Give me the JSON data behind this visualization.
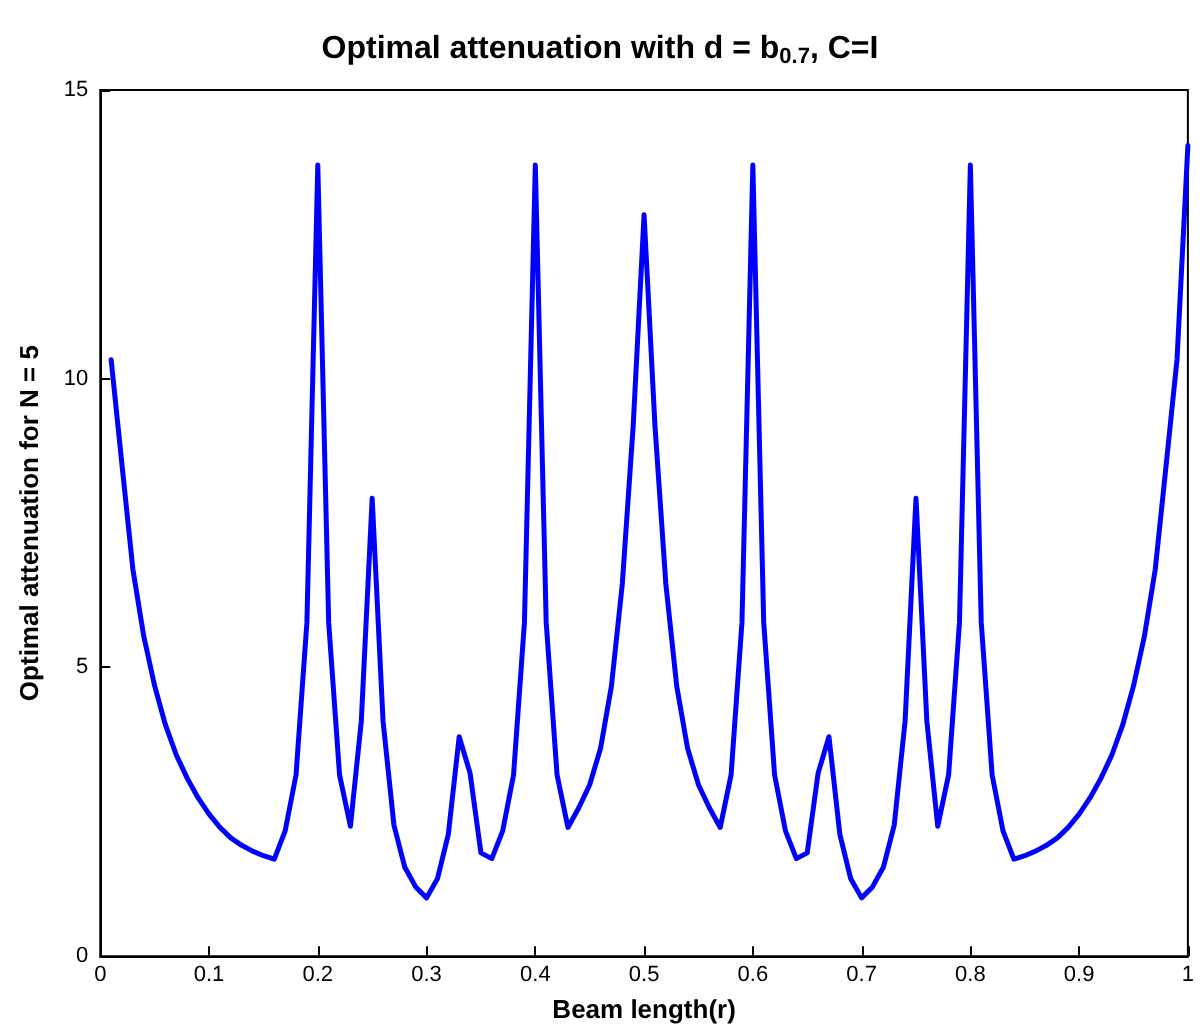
{
  "chart_data": {
    "type": "line",
    "title": "Optimal attenuation with d = b$_{0.7}$, C=I",
    "xlabel": "Beam length(r)",
    "ylabel": "Optimal attenuation for N = 5",
    "x": [
      0.01,
      0.02,
      0.03,
      0.04,
      0.05,
      0.06,
      0.07,
      0.08,
      0.09,
      0.1,
      0.11,
      0.12,
      0.13,
      0.14,
      0.15,
      0.16,
      0.17,
      0.18,
      0.19,
      0.2,
      0.21,
      0.22,
      0.23,
      0.24,
      0.25,
      0.26,
      0.27,
      0.28,
      0.29,
      0.3,
      0.31,
      0.32,
      0.33,
      0.34,
      0.35,
      0.36,
      0.37,
      0.38,
      0.39,
      0.4,
      0.41,
      0.42,
      0.43,
      0.44,
      0.45,
      0.46,
      0.47,
      0.48,
      0.49,
      0.5,
      0.51,
      0.52,
      0.53,
      0.54,
      0.55,
      0.56,
      0.57,
      0.58,
      0.59,
      0.6,
      0.61,
      0.62,
      0.63,
      0.64,
      0.65,
      0.66,
      0.67,
      0.68,
      0.69,
      0.7,
      0.71,
      0.72,
      0.73,
      0.74,
      0.75,
      0.76,
      0.77,
      0.78,
      0.79,
      0.8,
      0.81,
      0.82,
      0.83,
      0.84,
      0.85,
      0.86,
      0.87,
      0.88,
      0.89,
      0.9,
      0.91,
      0.92,
      0.93,
      0.94,
      0.95,
      0.96,
      0.97,
      0.98,
      0.99,
      1.0
    ],
    "series": [
      {
        "color": "#0000ff",
        "values": [
          10.33,
          8.5,
          6.7,
          5.54,
          4.68,
          4.0,
          3.48,
          3.08,
          2.74,
          2.46,
          2.23,
          2.05,
          1.92,
          1.82,
          1.74,
          1.68,
          2.17,
          3.14,
          5.78,
          13.7,
          5.78,
          3.14,
          2.25,
          4.07,
          7.93,
          4.07,
          2.27,
          1.54,
          1.2,
          1.01,
          1.34,
          2.11,
          3.8,
          3.17,
          1.79,
          1.69,
          2.17,
          3.14,
          5.78,
          13.7,
          5.78,
          3.14,
          2.23,
          2.57,
          2.97,
          3.6,
          4.68,
          6.45,
          9.19,
          12.84,
          9.19,
          6.45,
          4.68,
          3.6,
          2.97,
          2.57,
          2.23,
          3.14,
          5.78,
          13.7,
          5.78,
          3.14,
          2.17,
          1.69,
          1.79,
          3.17,
          3.8,
          2.11,
          1.34,
          1.01,
          1.2,
          1.54,
          2.27,
          4.07,
          7.93,
          4.07,
          2.25,
          3.14,
          5.78,
          13.7,
          5.78,
          3.14,
          2.17,
          1.68,
          1.74,
          1.82,
          1.92,
          2.05,
          2.23,
          2.46,
          2.74,
          3.08,
          3.48,
          4.0,
          4.68,
          5.54,
          6.7,
          8.5,
          10.33,
          14.04
        ]
      }
    ],
    "xlim": [
      0,
      1
    ],
    "xticks": [
      0,
      0.1,
      0.2,
      0.3,
      0.4,
      0.5,
      0.6,
      0.7,
      0.8,
      0.9,
      1
    ],
    "ylim": [
      0,
      15
    ],
    "yticks": [
      0,
      5,
      10,
      15
    ],
    "marker": "none",
    "line_style": "solid"
  }
}
